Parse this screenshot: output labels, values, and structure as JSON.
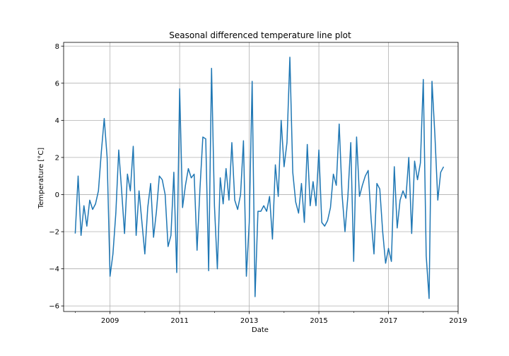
{
  "chart_data": {
    "type": "line",
    "title": "Seasonal differenced temperature line plot",
    "xlabel": "Date",
    "ylabel": "Temperature [°C]",
    "x_start": "2008-01",
    "x_step": "1 month",
    "xlim": [
      "2007-09",
      "2019-01"
    ],
    "ylim": [
      -6.3,
      8.2
    ],
    "x_ticks": [
      "2009",
      "2011",
      "2013",
      "2015",
      "2017",
      "2019"
    ],
    "y_ticks": [
      "8",
      "6",
      "4",
      "2",
      "0",
      "−2",
      "−4",
      "−6"
    ],
    "grid": true,
    "color": "#1f77b4",
    "series": [
      {
        "values": [
          -2.1,
          1.0,
          -2.2,
          -0.6,
          -1.7,
          -0.3,
          -0.8,
          -0.5,
          0.2,
          2.3,
          4.1,
          2.0,
          -4.4,
          -3.2,
          -1.0,
          2.4,
          0.2,
          -2.1,
          1.1,
          0.2,
          2.6,
          -2.2,
          0.2,
          -1.5,
          -3.2,
          -0.7,
          0.6,
          -2.3,
          -0.9,
          1.0,
          0.8,
          0.0,
          -2.8,
          -2.2,
          1.2,
          -4.2,
          5.7,
          -0.7,
          0.5,
          1.4,
          0.9,
          1.1,
          -3.0,
          0.3,
          3.1,
          3.0,
          -4.1,
          6.8,
          -0.6,
          -4.0,
          0.9,
          -0.5,
          1.4,
          -0.3,
          2.8,
          -0.3,
          -0.8,
          0.0,
          2.9,
          -4.4,
          -1.5,
          6.1,
          -5.5,
          -0.9,
          -0.9,
          -0.6,
          -0.9,
          -0.1,
          -2.4,
          1.6,
          -0.1,
          4.0,
          1.5,
          2.8,
          7.4,
          1.2,
          -0.4,
          -1.0,
          0.6,
          -1.5,
          2.7,
          -0.6,
          0.7,
          -0.6,
          2.4,
          -1.5,
          -1.7,
          -1.4,
          -0.7,
          1.1,
          0.5,
          3.8,
          0.0,
          -2.0,
          -0.1,
          2.8,
          -3.6,
          3.1,
          -0.1,
          0.5,
          1.0,
          1.3,
          -1.3,
          -3.2,
          0.6,
          0.3,
          -2.0,
          -3.7,
          -2.9,
          -3.6,
          1.5,
          -1.8,
          -0.3,
          0.2,
          -0.2,
          2.0,
          -2.1,
          1.8,
          0.8,
          1.7,
          6.2,
          -3.3,
          -5.6,
          6.1,
          3.2,
          -0.3,
          1.2,
          1.5
        ]
      }
    ]
  }
}
